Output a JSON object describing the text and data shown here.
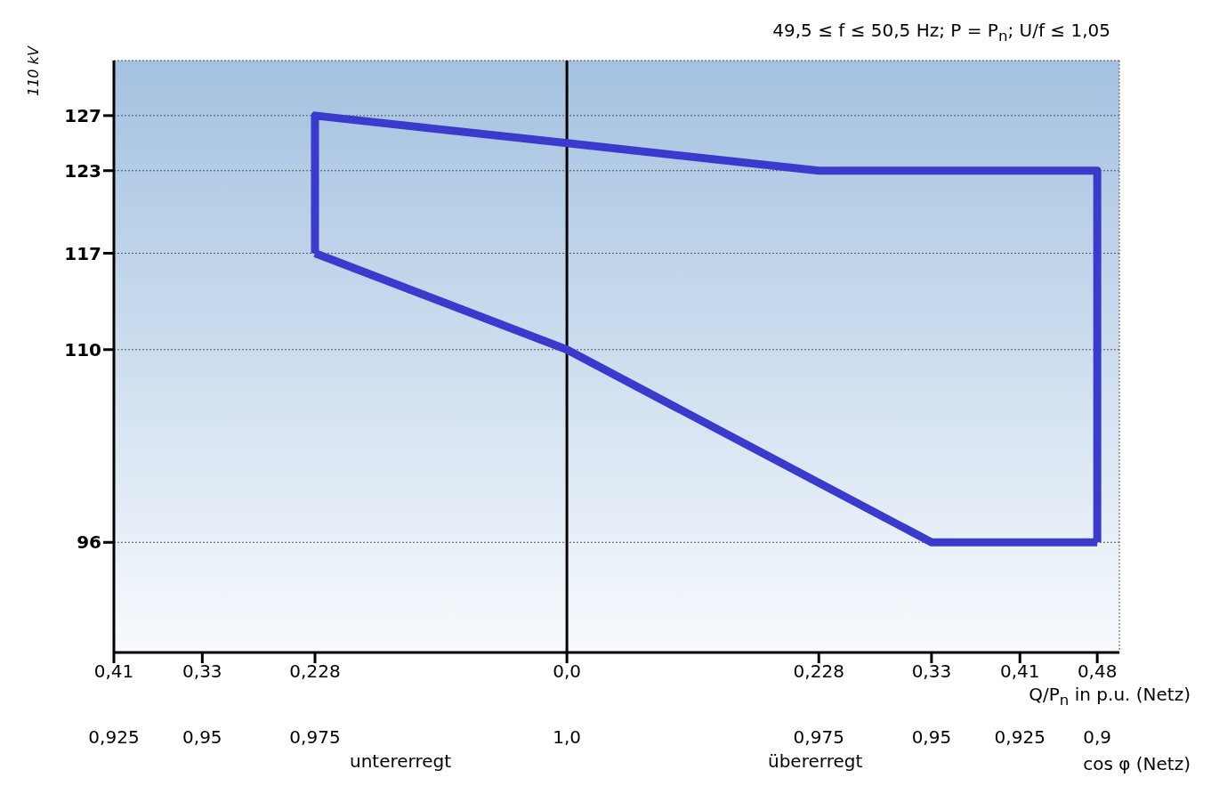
{
  "chart_data": {
    "type": "line",
    "subtitle": "49,5 ≤ f ≤ 50,5 Hz; P = P$_{n}$; U/f ≤ 1,05",
    "xlabel": "Q/P$_{n}$ in p.u. (Netz)",
    "x2label": "cos φ (Netz)",
    "annotations": [
      "110 kV",
      "untererregt",
      "übererregt",
      "0,925",
      "0,95",
      "0,975",
      "1,0",
      "0,975",
      "0,95",
      "0,925",
      "0,9"
    ],
    "xlim": [
      -0.41,
      0.5
    ],
    "xticks": [
      {
        "value": -0.41,
        "label": "0,41"
      },
      {
        "value": -0.33,
        "label": "0,33"
      },
      {
        "value": -0.228,
        "label": "0,228"
      },
      {
        "value": 0,
        "label": "0,0"
      },
      {
        "value": 0.228,
        "label": "0,228"
      },
      {
        "value": 0.33,
        "label": "0,33"
      },
      {
        "value": 0.41,
        "label": "0,41"
      },
      {
        "value": 0.48,
        "label": "0,48"
      }
    ],
    "ylim": [
      88,
      131
    ],
    "yticks": [
      96,
      110,
      117,
      123,
      127
    ],
    "grid": true,
    "marker": "none",
    "line_style": "solid",
    "ref_lines": [
      {
        "axis": "x",
        "value": 0,
        "color": "#000000"
      }
    ],
    "series": [
      {
        "color": "#3a3acc",
        "x": [
          -0.228,
          -0.228,
          0,
          0.228,
          0.48,
          0.48
        ],
        "values": [
          117,
          127,
          125,
          123,
          123,
          96
        ]
      },
      {
        "color": "#3a3acc",
        "x": [
          -0.228,
          0,
          0.33,
          0.48
        ],
        "values": [
          117,
          110,
          96,
          96
        ]
      }
    ]
  }
}
